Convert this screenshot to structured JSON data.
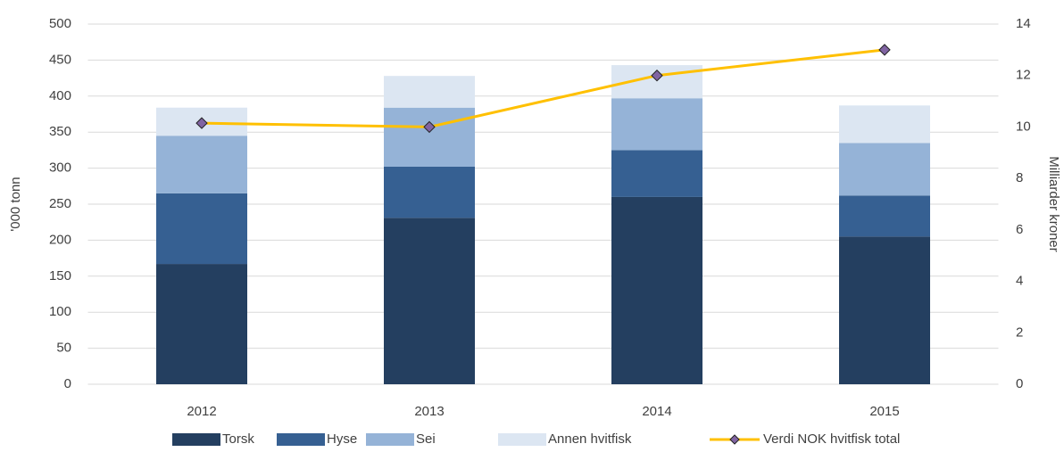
{
  "chart_data": {
    "type": "bar",
    "stacked": true,
    "categories": [
      "2012",
      "2013",
      "2014",
      "2015"
    ],
    "series": [
      {
        "name": "Torsk",
        "color": "#243f60",
        "values": [
          167,
          231,
          260,
          205
        ]
      },
      {
        "name": "Hyse",
        "color": "#366092",
        "values": [
          98,
          71,
          65,
          57
        ]
      },
      {
        "name": "Sei",
        "color": "#95b3d7",
        "values": [
          80,
          82,
          72,
          73
        ]
      },
      {
        "name": "Annen hvitfisk",
        "color": "#dce6f2",
        "values": [
          39,
          44,
          46,
          52
        ]
      },
      {
        "name": "Verdi NOK hvitfisk total",
        "type": "line",
        "axis": "y2",
        "color": "#ffc000",
        "marker_color": "#8064a2",
        "values": [
          10.15,
          10.0,
          12.0,
          13.0
        ]
      }
    ],
    "ylabel": "'000 tonn",
    "y2label": "Milliarder kroner",
    "ylim": [
      0,
      500
    ],
    "yticks": [
      0,
      50,
      100,
      150,
      200,
      250,
      300,
      350,
      400,
      450,
      500
    ],
    "y2lim": [
      0,
      14
    ],
    "y2ticks": [
      0,
      2,
      4,
      6,
      8,
      10,
      12,
      14
    ],
    "grid": true,
    "legend": "bottom"
  }
}
